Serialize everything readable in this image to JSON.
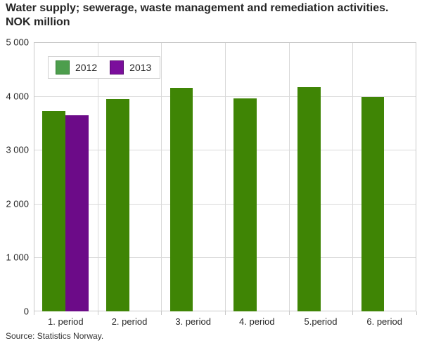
{
  "title": {
    "line1": "Water supply; sewerage, waste management and remediation activities.",
    "line2": "NOK million"
  },
  "source": "Source: Statistics Norway.",
  "chart_data": {
    "type": "bar",
    "title": "Water supply; sewerage, waste management and remediation activities. NOK million",
    "unit": "NOK million",
    "categories": [
      "1. period",
      "2. period",
      "3. period",
      "4. period",
      "5.period",
      "6. period"
    ],
    "series": [
      {
        "name": "2012",
        "color": "#3f8505",
        "legend_color": "#4d9e4d",
        "legend_border": "#2c7a2c",
        "values": [
          3720,
          3940,
          4150,
          3950,
          4160,
          3980
        ]
      },
      {
        "name": "2013",
        "color": "#6c0b88",
        "legend_color": "#7b0e9c",
        "legend_border": "#5a0a73",
        "values": [
          3640,
          null,
          null,
          null,
          null,
          null
        ]
      }
    ],
    "ylim": [
      0,
      5000
    ],
    "yticks": [
      0,
      1000,
      2000,
      3000,
      4000,
      5000
    ],
    "yticklabels": [
      "0",
      "1 000",
      "2 000",
      "3 000",
      "4 000",
      "5 000"
    ],
    "xlabel": "",
    "ylabel": "",
    "grid": true,
    "legend_position": "top-left",
    "colors": {
      "grid": "#d9d9d9",
      "plot_border": "#c9c9c9",
      "text": "#262626"
    }
  }
}
